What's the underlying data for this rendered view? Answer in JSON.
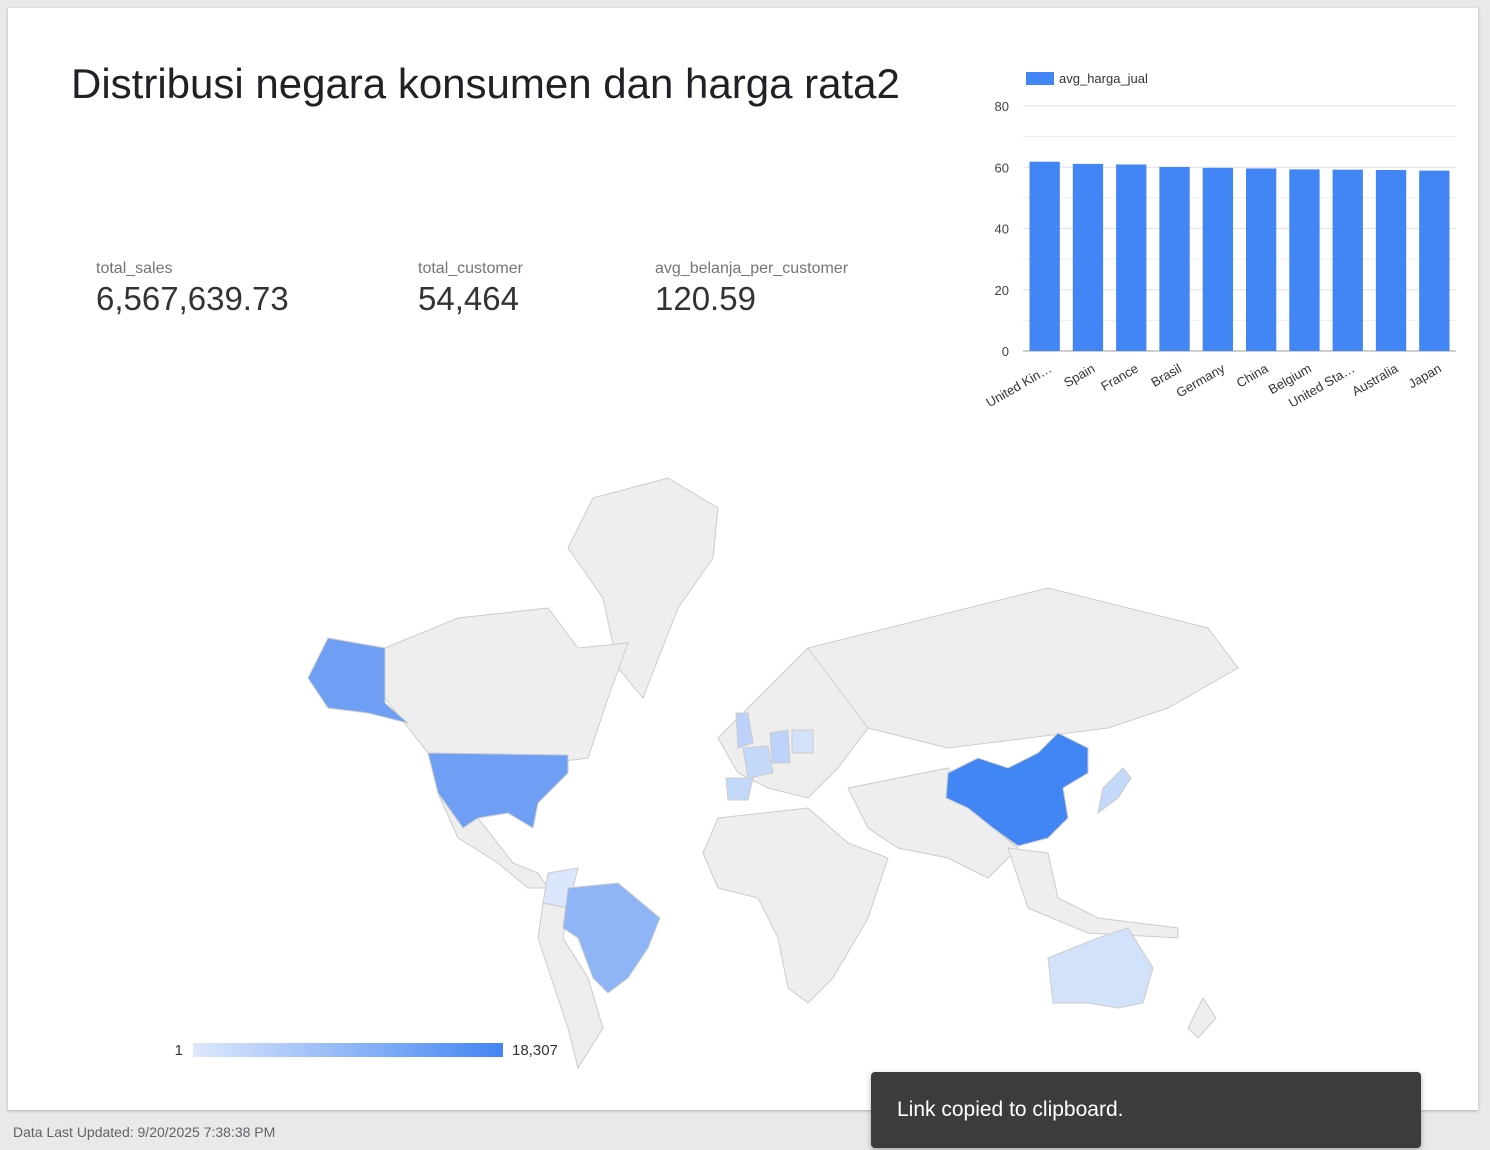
{
  "report": {
    "title": "Distribusi negara konsumen dan harga rata2",
    "footer": "Data Last Updated: 9/20/2025 7:38:38 PM"
  },
  "kpis": [
    {
      "label": "total_sales",
      "value": "6,567,639.73"
    },
    {
      "label": "total_customer",
      "value": "54,464"
    },
    {
      "label": "avg_belanja_per_customer",
      "value": "120.59"
    }
  ],
  "chart_data": {
    "type": "bar",
    "legend": "avg_harga_jual",
    "legend_position": "top-left",
    "color": "#4285f4",
    "categories": [
      "United Kin…",
      "Spain",
      "France",
      "Brasil",
      "Germany",
      "China",
      "Belgium",
      "United Sta…",
      "Australia",
      "Japan"
    ],
    "values": [
      61.8,
      61.1,
      60.9,
      60.1,
      59.8,
      59.6,
      59.3,
      59.2,
      59.1,
      58.9
    ],
    "yticks": [
      0,
      20,
      40,
      60,
      80
    ],
    "ylim": [
      0,
      80
    ],
    "grid": true
  },
  "geo_map": {
    "highlight_color": "#4285f4",
    "base_color": "#eeeeee",
    "scale_min": "1",
    "scale_max": "18,307",
    "regions": [
      {
        "name": "China",
        "level": 1.0
      },
      {
        "name": "United States",
        "level": 0.7
      },
      {
        "name": "Brasil",
        "level": 0.5
      },
      {
        "name": "United Kingdom",
        "level": 0.35
      },
      {
        "name": "Germany",
        "level": 0.25
      },
      {
        "name": "France",
        "level": 0.2
      },
      {
        "name": "Spain",
        "level": 0.2
      },
      {
        "name": "Australia",
        "level": 0.2
      },
      {
        "name": "Japan",
        "level": 0.25
      },
      {
        "name": "Poland",
        "level": 0.15
      },
      {
        "name": "Colombia",
        "level": 0.1
      }
    ]
  },
  "toast": {
    "message": "Link copied to clipboard."
  }
}
